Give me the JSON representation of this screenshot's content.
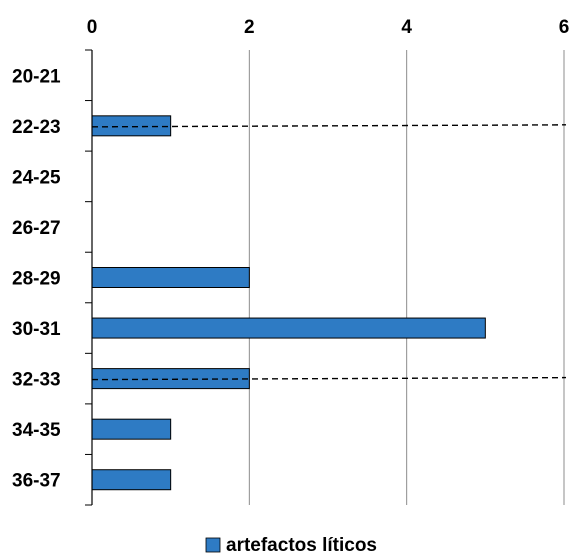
{
  "chart_data": {
    "type": "bar",
    "orientation": "horizontal",
    "categories": [
      "20-21",
      "22-23",
      "24-25",
      "26-27",
      "28-29",
      "30-31",
      "32-33",
      "34-35",
      "36-37"
    ],
    "series": [
      {
        "name": "artefactos líticos",
        "values": [
          0,
          1,
          0,
          0,
          2,
          5,
          2,
          1,
          1
        ],
        "color": "#2E7BC4"
      }
    ],
    "xlim": [
      0,
      6
    ],
    "x_ticks": [
      0,
      2,
      4,
      6
    ],
    "x_axis_position": "top",
    "grid": "vertical",
    "legend": "bottom",
    "reference_lines": [
      {
        "between": [
          "22-23"
        ],
        "style": "dashed",
        "color": "#000000"
      },
      {
        "between": [
          "32-33"
        ],
        "style": "dashed",
        "color": "#000000"
      }
    ]
  }
}
